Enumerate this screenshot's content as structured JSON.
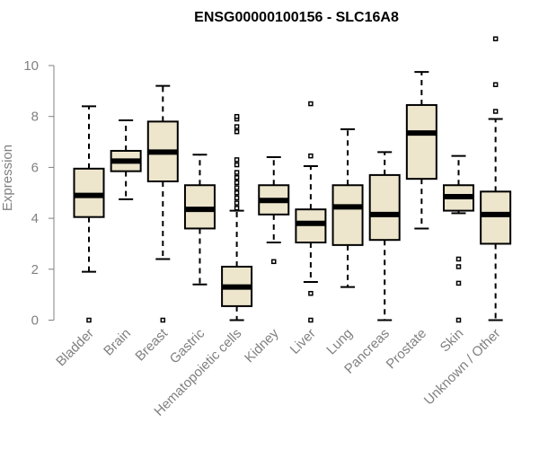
{
  "chart_data": {
    "type": "boxplot",
    "title": "ENSG00000100156 - SLC16A8",
    "xlabel": "",
    "ylabel": "Expression",
    "ylim": [
      0,
      11
    ],
    "yticks": [
      0,
      2,
      4,
      6,
      8,
      10
    ],
    "box_fill": "#ede5cc",
    "line_color": "#000000",
    "label_color": "#808080",
    "categories": [
      "Bladder",
      "Brain",
      "Breast",
      "Gastric",
      "Hematopoietic cells",
      "Kidney",
      "Liver",
      "Lung",
      "Pancreas",
      "Prostate",
      "Skin",
      "Unknown / Other"
    ],
    "boxes": [
      {
        "name": "Bladder",
        "whisker_low": 1.9,
        "q1": 4.05,
        "median": 4.9,
        "q3": 5.95,
        "whisker_high": 8.4,
        "outliers": [
          0.0
        ]
      },
      {
        "name": "Brain",
        "whisker_low": 4.75,
        "q1": 5.85,
        "median": 6.25,
        "q3": 6.65,
        "whisker_high": 7.85,
        "outliers": []
      },
      {
        "name": "Breast",
        "whisker_low": 2.4,
        "q1": 5.45,
        "median": 6.6,
        "q3": 7.8,
        "whisker_high": 9.2,
        "outliers": [
          0.0
        ]
      },
      {
        "name": "Gastric",
        "whisker_low": 1.4,
        "q1": 3.6,
        "median": 4.35,
        "q3": 5.3,
        "whisker_high": 6.5,
        "outliers": []
      },
      {
        "name": "Hematopoietic cells",
        "whisker_low": 0.0,
        "q1": 0.55,
        "median": 1.3,
        "q3": 2.1,
        "whisker_high": 4.3,
        "outliers": [
          4.4,
          4.6,
          4.8,
          5.0,
          5.2,
          5.4,
          5.6,
          5.8,
          6.1,
          6.3,
          7.4,
          7.6,
          7.9,
          8.0
        ]
      },
      {
        "name": "Kidney",
        "whisker_low": 3.05,
        "q1": 4.15,
        "median": 4.7,
        "q3": 5.3,
        "whisker_high": 6.4,
        "outliers": [
          2.3
        ]
      },
      {
        "name": "Liver",
        "whisker_low": 1.5,
        "q1": 3.05,
        "median": 3.8,
        "q3": 4.35,
        "whisker_high": 6.05,
        "outliers": [
          0.0,
          1.05,
          6.45,
          8.5
        ]
      },
      {
        "name": "Lung",
        "whisker_low": 1.3,
        "q1": 2.95,
        "median": 4.45,
        "q3": 5.3,
        "whisker_high": 7.5,
        "outliers": []
      },
      {
        "name": "Pancreas",
        "whisker_low": 0.0,
        "q1": 3.15,
        "median": 4.15,
        "q3": 5.7,
        "whisker_high": 6.6,
        "outliers": []
      },
      {
        "name": "Prostate",
        "whisker_low": 3.6,
        "q1": 5.55,
        "median": 7.35,
        "q3": 8.45,
        "whisker_high": 9.75,
        "outliers": []
      },
      {
        "name": "Skin",
        "whisker_low": 4.2,
        "q1": 4.3,
        "median": 4.85,
        "q3": 5.3,
        "whisker_high": 6.45,
        "outliers": [
          0.0,
          1.45,
          2.1,
          2.4
        ]
      },
      {
        "name": "Unknown / Other",
        "whisker_low": 0.0,
        "q1": 3.0,
        "median": 4.15,
        "q3": 5.05,
        "whisker_high": 7.9,
        "outliers": [
          8.2,
          9.25,
          11.05
        ]
      }
    ]
  }
}
